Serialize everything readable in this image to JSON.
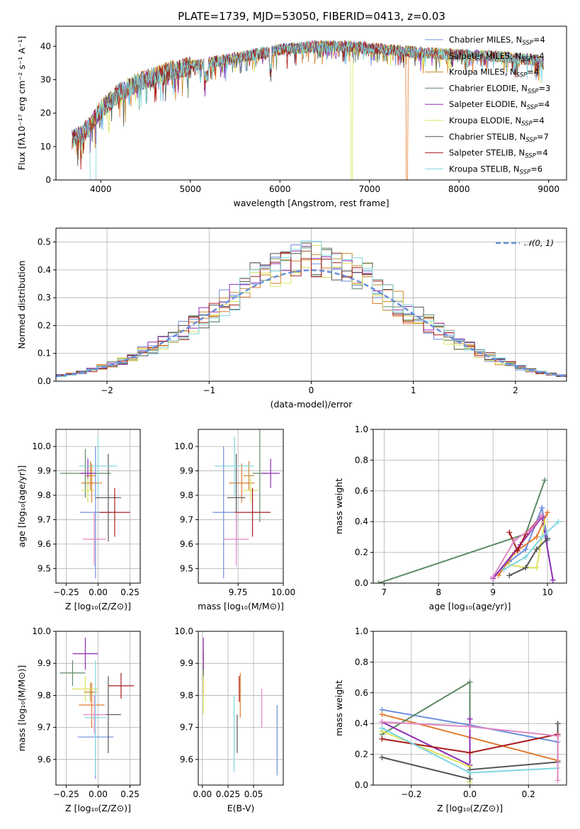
{
  "page": {
    "title": "PLATE=1739, MJD=53050, FIBERID=0413, z=0.03"
  },
  "colors": [
    "#6a8fdc",
    "#e07b2e",
    "#c58a2a",
    "#5f8a66",
    "#8e2bb4",
    "#dce25a",
    "#555555",
    "#a81c1c",
    "#7fd6e0",
    "#e088c4"
  ],
  "chart_data": [
    {
      "id": "spectrum",
      "type": "line",
      "title": "PLATE=1739, MJD=53050, FIBERID=0413, z=0.03",
      "xlabel": "wavelength [Angstrom, rest frame]",
      "ylabel": "Flux [fλ10⁻¹⁷ erg cm⁻² s⁻¹ A⁻¹]",
      "xlim": [
        3500,
        9200
      ],
      "ylim": [
        0,
        46
      ],
      "xticks": [
        4000,
        5000,
        6000,
        7000,
        8000,
        9000
      ],
      "yticks": [
        0,
        10,
        20,
        30,
        40
      ],
      "grid": false,
      "legend_position": "top-right",
      "continuum_points": [
        [
          3680,
          12
        ],
        [
          3800,
          14
        ],
        [
          3900,
          17
        ],
        [
          4000,
          21
        ],
        [
          4200,
          26
        ],
        [
          4400,
          29
        ],
        [
          4600,
          31
        ],
        [
          4800,
          33
        ],
        [
          5000,
          34
        ],
        [
          5200,
          35
        ],
        [
          5400,
          36
        ],
        [
          5600,
          37
        ],
        [
          5800,
          38
        ],
        [
          6000,
          39
        ],
        [
          6200,
          39.5
        ],
        [
          6400,
          40
        ],
        [
          6600,
          40
        ],
        [
          6800,
          40
        ],
        [
          7000,
          39.5
        ],
        [
          7200,
          39
        ],
        [
          7400,
          38.5
        ],
        [
          7600,
          38
        ],
        [
          8000,
          37.5
        ],
        [
          8400,
          37
        ],
        [
          8800,
          36
        ],
        [
          8950,
          35
        ]
      ],
      "series": [
        {
          "name": "Chabrier MILES, N",
          "sub": "SSP",
          "suffix": "=4",
          "color_index": 0
        },
        {
          "name": "Salpeter MILES, N",
          "sub": "SSP",
          "suffix": "=4",
          "color_index": 1
        },
        {
          "name": "Kroupa MILES, N",
          "sub": "SSP",
          "suffix": "=4",
          "color_index": 2
        },
        {
          "name": "Chabrier ELODIE, N",
          "sub": "SSP",
          "suffix": "=3",
          "color_index": 3
        },
        {
          "name": "Salpeter ELODIE, N",
          "sub": "SSP",
          "suffix": "=4",
          "color_index": 4
        },
        {
          "name": "Kroupa ELODIE, N",
          "sub": "SSP",
          "suffix": "=4",
          "color_index": 5
        },
        {
          "name": "Chabrier STELIB, N",
          "sub": "SSP",
          "suffix": "=7",
          "color_index": 6
        },
        {
          "name": "Salpeter STELIB, N",
          "sub": "SSP",
          "suffix": "=4",
          "color_index": 7
        },
        {
          "name": "Kroupa STELIB, N",
          "sub": "SSP",
          "suffix": "=6",
          "color_index": 8
        }
      ],
      "dropouts": [
        {
          "x": 6800,
          "color_index": 5
        },
        {
          "x": 7420,
          "color_index": 1
        }
      ]
    },
    {
      "id": "residuals",
      "type": "histogram",
      "xlabel": "(data-model)/error",
      "ylabel": "Normed distribution",
      "xlim": [
        -2.5,
        2.5
      ],
      "ylim": [
        0,
        0.55
      ],
      "xticks": [
        -2,
        -1,
        0,
        1,
        2
      ],
      "xtick_labels": [
        "−2",
        "−1",
        "0",
        "1",
        "2"
      ],
      "yticks": [
        0.0,
        0.1,
        0.2,
        0.3,
        0.4,
        0.5
      ],
      "ytick_labels": [
        "0.0",
        "0.1",
        "0.2",
        "0.3",
        "0.4",
        "0.5"
      ],
      "grid": true,
      "legend_position": "top-right",
      "legend_label": "𝒩(0, 1)",
      "normal_curve": {
        "mean": 0,
        "sigma": 1,
        "color": "#6a8fdc"
      },
      "bin_width": 0.1,
      "series_count": 9
    },
    {
      "id": "age-vs-z",
      "type": "errorbar",
      "xlabel": "Z [log₁₀(Z/Z⊙)]",
      "ylabel": "age  [log₁₀(age/yr)]",
      "xlim": [
        -0.33,
        0.33
      ],
      "ylim": [
        9.44,
        10.07
      ],
      "xticks": [
        -0.25,
        0.0,
        0.25
      ],
      "xtick_labels": [
        "−0.25",
        "0.00",
        "0.25"
      ],
      "yticks": [
        9.5,
        9.6,
        9.7,
        9.8,
        9.9,
        10.0
      ],
      "ytick_labels": [
        "9.5",
        "9.6",
        "9.7",
        "9.8",
        "9.9",
        "10.0"
      ],
      "grid": true,
      "points": [
        {
          "x": -0.02,
          "y": 9.73,
          "ex": 0.12,
          "ey": 0.27,
          "c": 0
        },
        {
          "x": -0.05,
          "y": 9.85,
          "ex": 0.08,
          "ey": 0.08,
          "c": 1
        },
        {
          "x": -0.06,
          "y": 9.88,
          "ex": 0.04,
          "ey": 0.06,
          "c": 2
        },
        {
          "x": -0.1,
          "y": 9.89,
          "ex": 0.2,
          "ey": 0.1,
          "c": 3
        },
        {
          "x": -0.08,
          "y": 9.89,
          "ex": 0.06,
          "ey": 0.06,
          "c": 4
        },
        {
          "x": -0.08,
          "y": 9.82,
          "ex": 0.05,
          "ey": 0.05,
          "c": 5
        },
        {
          "x": 0.08,
          "y": 9.79,
          "ex": 0.1,
          "ey": 0.18,
          "c": 6
        },
        {
          "x": 0.13,
          "y": 9.73,
          "ex": 0.12,
          "ey": 0.1,
          "c": 7
        },
        {
          "x": 0.0,
          "y": 9.92,
          "ex": 0.15,
          "ey": 0.12,
          "c": 8
        },
        {
          "x": -0.03,
          "y": 9.62,
          "ex": 0.09,
          "ey": 0.11,
          "c": 9
        }
      ]
    },
    {
      "id": "age-vs-mass",
      "type": "errorbar",
      "xlabel": "mass [log₁₀(M/M⊙)]",
      "ylabel": "",
      "xlim": [
        9.53,
        10.0
      ],
      "ylim": [
        9.44,
        10.07
      ],
      "xticks": [
        9.75,
        10.0
      ],
      "xtick_labels": [
        "9.75",
        "10.00"
      ],
      "yticks": [
        9.5,
        9.6,
        9.7,
        9.8,
        9.9,
        10.0
      ],
      "ytick_labels": [
        "9.5",
        "9.6",
        "9.7",
        "9.8",
        "9.9",
        "10.0"
      ],
      "grid": true,
      "points": [
        {
          "x": 9.67,
          "y": 9.73,
          "ex": 0.06,
          "ey": 0.27,
          "c": 0
        },
        {
          "x": 9.77,
          "y": 9.85,
          "ex": 0.07,
          "ey": 0.08,
          "c": 1
        },
        {
          "x": 9.81,
          "y": 9.88,
          "ex": 0.03,
          "ey": 0.06,
          "c": 2
        },
        {
          "x": 9.87,
          "y": 9.89,
          "ex": 0.04,
          "ey": 0.2,
          "c": 3
        },
        {
          "x": 9.93,
          "y": 9.89,
          "ex": 0.05,
          "ey": 0.06,
          "c": 4
        },
        {
          "x": 9.82,
          "y": 9.82,
          "ex": 0.04,
          "ey": 0.05,
          "c": 5
        },
        {
          "x": 9.74,
          "y": 9.79,
          "ex": 0.05,
          "ey": 0.18,
          "c": 6
        },
        {
          "x": 9.83,
          "y": 9.73,
          "ex": 0.1,
          "ey": 0.1,
          "c": 7
        },
        {
          "x": 9.73,
          "y": 9.92,
          "ex": 0.11,
          "ey": 0.12,
          "c": 8
        },
        {
          "x": 9.74,
          "y": 9.62,
          "ex": 0.07,
          "ey": 0.11,
          "c": 9
        }
      ]
    },
    {
      "id": "weight-vs-age",
      "type": "line",
      "xlabel": "age  [log₁₀(age/yr)]",
      "ylabel": "mass weight",
      "xlim": [
        6.8,
        10.35
      ],
      "ylim": [
        0,
        1.0
      ],
      "xticks": [
        7,
        8,
        9,
        10
      ],
      "yticks": [
        0.0,
        0.2,
        0.4,
        0.6,
        0.8,
        1.0
      ],
      "ytick_labels": [
        "0.0",
        "0.2",
        "0.4",
        "0.6",
        "0.8",
        "1.0"
      ],
      "grid": true,
      "series": [
        {
          "c": 0,
          "points": [
            [
              9.0,
              0.04
            ],
            [
              9.3,
              0.14
            ],
            [
              9.6,
              0.22
            ],
            [
              9.9,
              0.49
            ],
            [
              10.0,
              0.28
            ]
          ]
        },
        {
          "c": 1,
          "points": [
            [
              9.1,
              0.05
            ],
            [
              9.4,
              0.2
            ],
            [
              9.8,
              0.3
            ],
            [
              10.0,
              0.46
            ]
          ]
        },
        {
          "c": 3,
          "points": [
            [
              6.9,
              0.0
            ],
            [
              9.6,
              0.32
            ],
            [
              9.95,
              0.67
            ]
          ]
        },
        {
          "c": 4,
          "points": [
            [
              9.0,
              0.03
            ],
            [
              9.5,
              0.25
            ],
            [
              9.9,
              0.43
            ],
            [
              10.1,
              0.02
            ]
          ]
        },
        {
          "c": 5,
          "points": [
            [
              9.3,
              0.12
            ],
            [
              9.6,
              0.1
            ],
            [
              9.8,
              0.1
            ],
            [
              9.95,
              0.4
            ]
          ]
        },
        {
          "c": 6,
          "points": [
            [
              9.3,
              0.05
            ],
            [
              9.6,
              0.1
            ],
            [
              9.8,
              0.22
            ],
            [
              10.0,
              0.29
            ]
          ]
        },
        {
          "c": 7,
          "points": [
            [
              9.3,
              0.33
            ],
            [
              9.45,
              0.21
            ],
            [
              9.6,
              0.32
            ],
            [
              9.9,
              0.44
            ]
          ]
        },
        {
          "c": 8,
          "points": [
            [
              9.2,
              0.09
            ],
            [
              9.6,
              0.17
            ],
            [
              9.9,
              0.3
            ],
            [
              10.2,
              0.4
            ]
          ]
        },
        {
          "c": 9,
          "points": [
            [
              9.0,
              0.04
            ],
            [
              9.4,
              0.28
            ],
            [
              9.7,
              0.35
            ],
            [
              9.9,
              0.44
            ]
          ]
        }
      ]
    },
    {
      "id": "mass-vs-z",
      "type": "errorbar",
      "xlabel": "Z [log₁₀(Z/Z⊙)]",
      "ylabel": "mass [log₁₀(M/M⊙)]",
      "xlim": [
        -0.33,
        0.33
      ],
      "ylim": [
        9.52,
        10.0
      ],
      "xticks": [
        -0.25,
        0.0,
        0.25
      ],
      "xtick_labels": [
        "−0.25",
        "0.00",
        "0.25"
      ],
      "yticks": [
        9.6,
        9.7,
        9.8,
        9.9,
        10.0
      ],
      "ytick_labels": [
        "9.6",
        "9.7",
        "9.8",
        "9.9",
        "10.0"
      ],
      "grid": true,
      "points": [
        {
          "x": -0.02,
          "y": 9.67,
          "ex": 0.14,
          "ey": 0.13,
          "c": 0
        },
        {
          "x": -0.05,
          "y": 9.77,
          "ex": 0.1,
          "ey": 0.07,
          "c": 1
        },
        {
          "x": -0.06,
          "y": 9.81,
          "ex": 0.05,
          "ey": 0.03,
          "c": 2
        },
        {
          "x": -0.2,
          "y": 9.87,
          "ex": 0.1,
          "ey": 0.04,
          "c": 3
        },
        {
          "x": -0.1,
          "y": 9.93,
          "ex": 0.1,
          "ey": 0.05,
          "c": 4
        },
        {
          "x": -0.1,
          "y": 9.82,
          "ex": 0.1,
          "ey": 0.04,
          "c": 5
        },
        {
          "x": 0.08,
          "y": 9.74,
          "ex": 0.1,
          "ey": 0.12,
          "c": 6
        },
        {
          "x": 0.18,
          "y": 9.83,
          "ex": 0.1,
          "ey": 0.04,
          "c": 7
        },
        {
          "x": -0.02,
          "y": 9.73,
          "ex": 0.09,
          "ey": 0.18,
          "c": 8
        },
        {
          "x": -0.03,
          "y": 9.74,
          "ex": 0.09,
          "ey": 0.06,
          "c": 9
        }
      ]
    },
    {
      "id": "mass-vs-ebv",
      "type": "errorbar",
      "xlabel": "E(B-V)",
      "ylabel": "",
      "xlim": [
        -0.004,
        0.079
      ],
      "ylim": [
        9.52,
        10.0
      ],
      "xticks": [
        0.0,
        0.025,
        0.05
      ],
      "xtick_labels": [
        "0.00",
        "0.025",
        "0.05"
      ],
      "yticks": [
        9.6,
        9.7,
        9.8,
        9.9,
        10.0
      ],
      "ytick_labels": [
        "9.6",
        "9.7",
        "9.8",
        "9.9",
        "10.0"
      ],
      "grid": true,
      "points": [
        {
          "x": 0.073,
          "y": 9.66,
          "ex": 0,
          "ey": 0.11,
          "c": 0
        },
        {
          "x": 0.037,
          "y": 9.8,
          "ex": 0,
          "ey": 0.07,
          "c": 1
        },
        {
          "x": 0.001,
          "y": 9.87,
          "ex": 0,
          "ey": 0.07,
          "c": 2
        },
        {
          "x": 0.001,
          "y": 9.87,
          "ex": 0,
          "ey": 0.02,
          "c": 3
        },
        {
          "x": 0.001,
          "y": 9.93,
          "ex": 0,
          "ey": 0.05,
          "c": 4
        },
        {
          "x": 0.001,
          "y": 9.8,
          "ex": 0,
          "ey": 0.06,
          "c": 5
        },
        {
          "x": 0.034,
          "y": 9.68,
          "ex": 0,
          "ey": 0.06,
          "c": 6
        },
        {
          "x": 0.036,
          "y": 9.82,
          "ex": 0,
          "ey": 0.04,
          "c": 7
        },
        {
          "x": 0.031,
          "y": 9.68,
          "ex": 0,
          "ey": 0.12,
          "c": 8
        },
        {
          "x": 0.058,
          "y": 9.76,
          "ex": 0,
          "ey": 0.06,
          "c": 9
        }
      ]
    },
    {
      "id": "weight-vs-z",
      "type": "line",
      "xlabel": "Z [log₁₀(Z/Z⊙)]",
      "ylabel": "mass weight",
      "xlim": [
        -0.33,
        0.33
      ],
      "ylim": [
        0,
        1.0
      ],
      "xticks": [
        -0.2,
        0.0,
        0.2
      ],
      "xtick_labels": [
        "−0.2",
        "0.0",
        "0.2"
      ],
      "yticks": [
        0.0,
        0.2,
        0.4,
        0.6,
        0.8,
        1.0
      ],
      "ytick_labels": [
        "0.0",
        "0.2",
        "0.4",
        "0.6",
        "0.8",
        "1.0"
      ],
      "grid": true,
      "series": [
        {
          "c": 0,
          "points": [
            [
              -0.3,
              0.49
            ],
            [
              0.0,
              0.39
            ],
            [
              0.3,
              0.28
            ]
          ]
        },
        {
          "c": 1,
          "points": [
            [
              -0.3,
              0.46
            ],
            [
              0.0,
              0.31
            ],
            [
              0.3,
              0.16
            ]
          ]
        },
        {
          "c": 3,
          "points": [
            [
              -0.3,
              0.33
            ],
            [
              0.0,
              0.67
            ],
            [
              0.0,
              0.0
            ]
          ]
        },
        {
          "c": 4,
          "points": [
            [
              -0.3,
              0.41
            ],
            [
              0.0,
              0.13
            ],
            [
              0.0,
              0.43
            ]
          ]
        },
        {
          "c": 5,
          "points": [
            [
              -0.3,
              0.35
            ],
            [
              0.0,
              0.12
            ],
            [
              0.0,
              0.02
            ]
          ]
        },
        {
          "c": 6,
          "points": [
            [
              -0.3,
              0.18
            ],
            [
              0.0,
              0.04
            ],
            [
              0.0,
              0.1
            ],
            [
              0.3,
              0.15
            ],
            [
              0.3,
              0.4
            ]
          ]
        },
        {
          "c": 7,
          "points": [
            [
              -0.3,
              0.3
            ],
            [
              0.0,
              0.21
            ],
            [
              0.3,
              0.33
            ]
          ]
        },
        {
          "c": 8,
          "points": [
            [
              -0.3,
              0.37
            ],
            [
              0.0,
              0.08
            ],
            [
              0.3,
              0.11
            ]
          ]
        },
        {
          "c": 9,
          "points": [
            [
              -0.3,
              0.41
            ],
            [
              0.0,
              0.38
            ],
            [
              0.3,
              0.32
            ],
            [
              0.3,
              0.03
            ]
          ]
        }
      ]
    }
  ]
}
